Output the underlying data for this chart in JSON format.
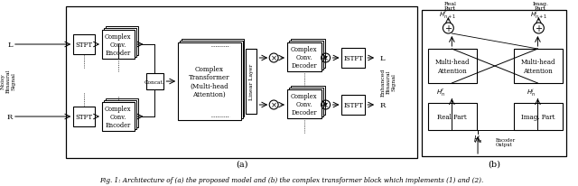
{
  "fig_width": 6.4,
  "fig_height": 2.07,
  "dpi": 100,
  "bg_color": "#ffffff",
  "caption": "Fig. 1: Architecture of (a) the proposed model and (b) the complex transformer block which implements (1) and (2).",
  "label_a": "(a)",
  "label_b": "(b)"
}
